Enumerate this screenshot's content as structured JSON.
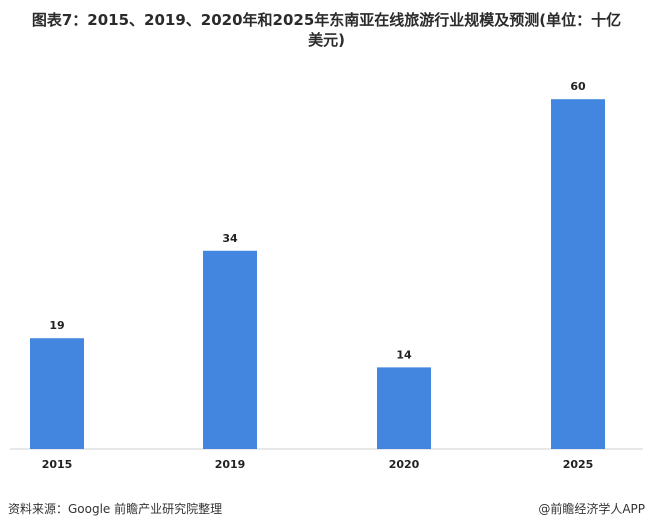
{
  "header": {
    "title_line1": "图表7：2015、2019、2020年和2025年东南亚在线旅游行业规模及预测(单位：十亿",
    "title_line2": "美元)"
  },
  "chart_data": {
    "type": "bar",
    "categories": [
      "2015",
      "2019",
      "2020",
      "2025"
    ],
    "values": [
      19,
      34,
      14,
      60
    ],
    "title": "图表7：2015、2019、2020年和2025年东南亚在线旅游行业规模及预测(单位：十亿美元)",
    "xlabel": "",
    "ylabel": "",
    "ylim": [
      0,
      65
    ],
    "grid": false,
    "bar_color": "#4286e0"
  },
  "footer": {
    "source": "资料来源：Google 前瞻产业研究院整理",
    "brand": "@前瞻经济学人APP"
  }
}
